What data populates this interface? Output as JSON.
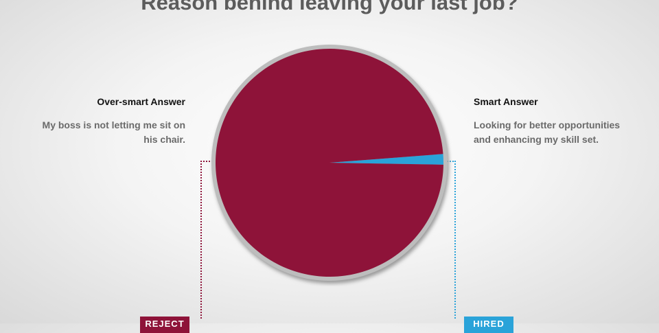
{
  "title": "Reason behind leaving your last job?",
  "left": {
    "heading": "Over-smart Answer",
    "text": "My boss is not letting me sit on his chair.",
    "badge": "REJECT"
  },
  "right": {
    "heading": "Smart Answer",
    "text": "Looking for better opportunities and enhancing my skill set.",
    "badge": "HIRED"
  },
  "chart_data": {
    "type": "pie",
    "title": "Reason behind leaving your last job?",
    "slices": [
      {
        "label": "Over-smart Answer",
        "value": 98.5,
        "color": "#8e1339"
      },
      {
        "label": "Smart Answer",
        "value": 1.5,
        "color": "#2aa3d9"
      }
    ],
    "legend": "none"
  },
  "colors": {
    "reject": "#8e1339",
    "hired": "#2aa3d9"
  }
}
